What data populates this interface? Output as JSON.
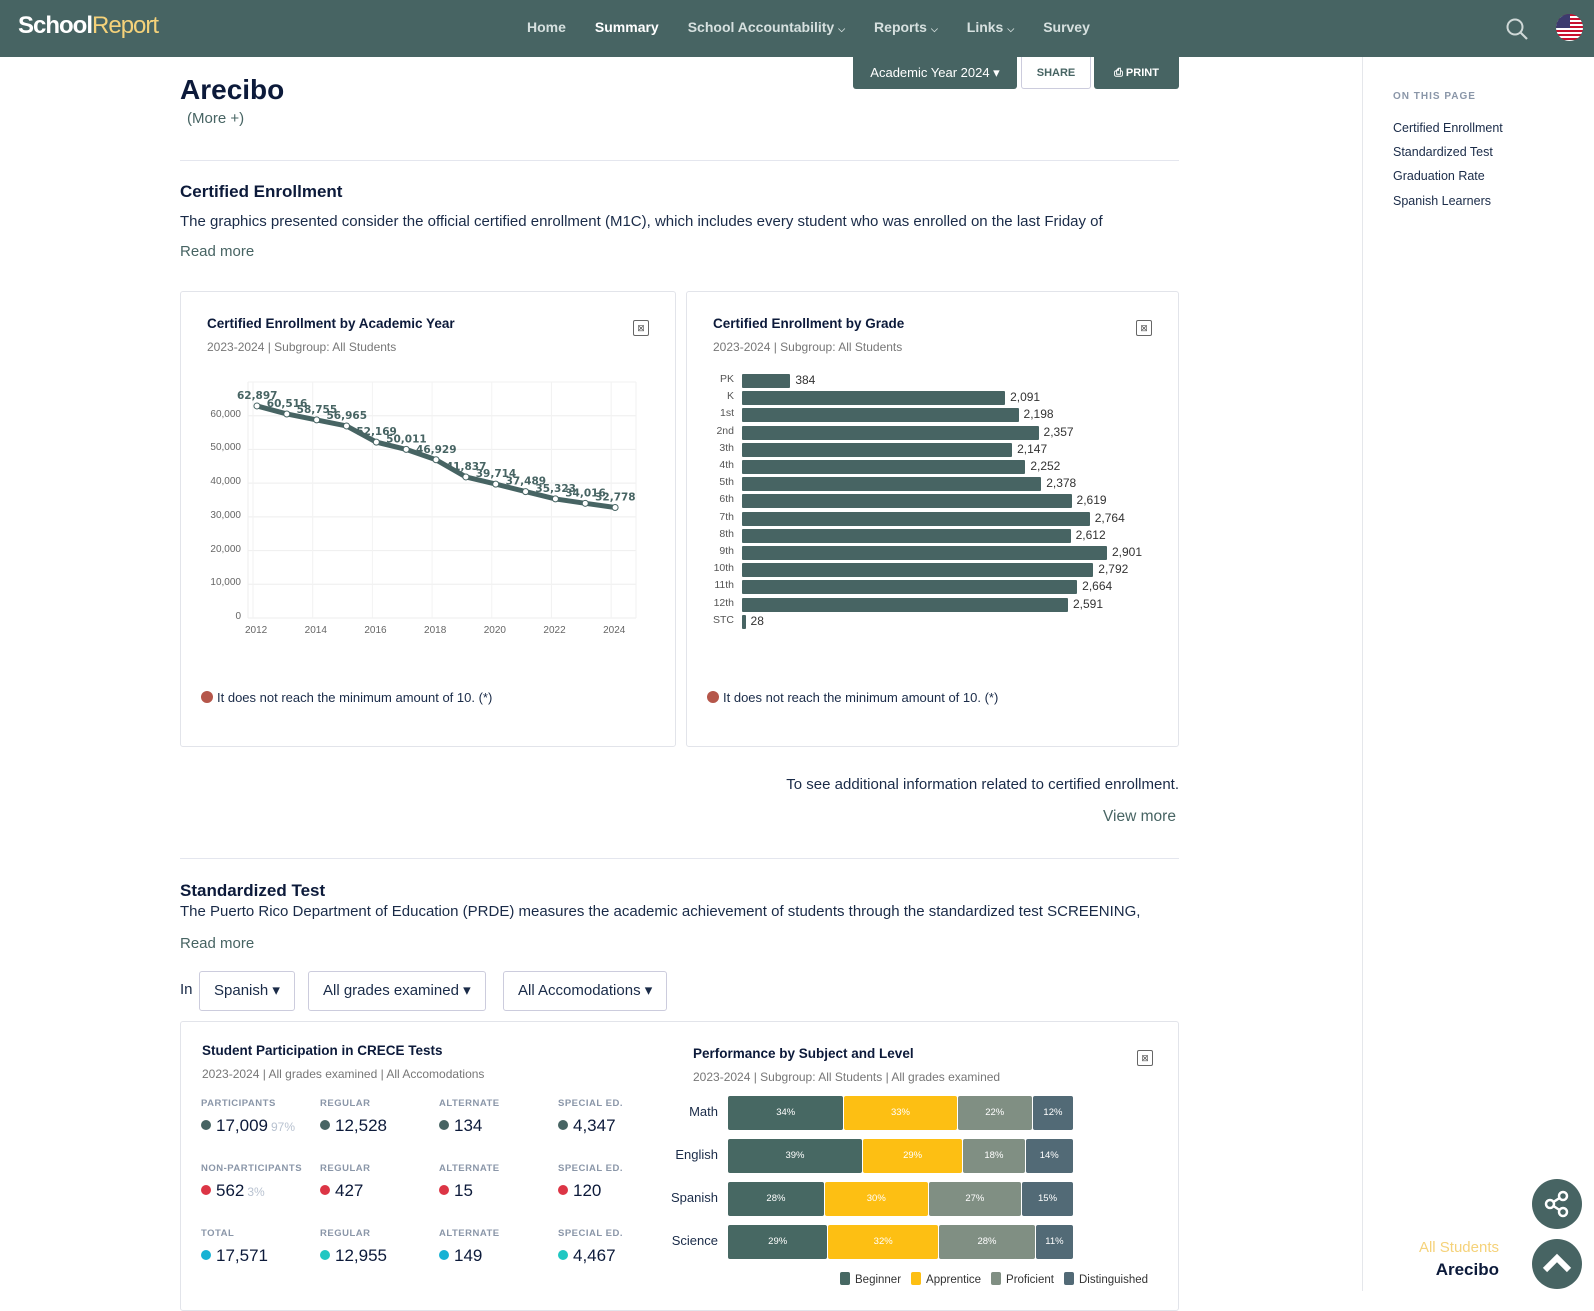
{
  "header": {
    "logo_a": "School",
    "logo_b": "Report",
    "nav": [
      {
        "label": "Home",
        "dropdown": false,
        "active": false
      },
      {
        "label": "Summary",
        "dropdown": false,
        "active": true
      },
      {
        "label": "School Accountability",
        "dropdown": true,
        "active": false
      },
      {
        "label": "Reports",
        "dropdown": true,
        "active": false
      },
      {
        "label": "Links",
        "dropdown": true,
        "active": false
      },
      {
        "label": "Survey",
        "dropdown": false,
        "active": false
      }
    ],
    "icons": {
      "search": "search-icon",
      "language": "us-flag-icon"
    }
  },
  "toolbar": {
    "year_label": "Academic Year 2024 ▾",
    "share_label": "SHARE",
    "print_label": "PRINT"
  },
  "page": {
    "title": "Arecibo",
    "more_label": "(More +)"
  },
  "on_this_page": {
    "title": "ON THIS PAGE",
    "links": [
      "Certified Enrollment",
      "Standardized Test",
      "Graduation Rate",
      "Spanish Learners"
    ]
  },
  "enrollment": {
    "heading": "Certified Enrollment",
    "text": "The graphics presented consider the official certified enrollment (M1C), which includes every student who was enrolled on the last Friday of",
    "read_more": "Read more",
    "note": "It does not reach the minimum amount of 10. (*)",
    "additional_text": "To see additional information related to certified enrollment.",
    "view_more": "View more"
  },
  "standardized": {
    "heading": "Standardized Test",
    "text": "The Puerto Rico Department of Education (PRDE) measures the academic achievement of students through the standardized test SCREENING,",
    "read_more": "Read more",
    "filter_prefix": "In",
    "filters": [
      "Spanish ▾",
      "All grades examined ▾",
      "All Accomodations ▾"
    ],
    "participation": {
      "title": "Student Participation in CRECE Tests",
      "subtitle": "2023-2024 | All grades examined | All Accomodations",
      "rows": [
        {
          "color": "#476463",
          "cells": [
            {
              "label": "PARTICIPANTS",
              "value": "17,009",
              "pct": "97%"
            },
            {
              "label": "REGULAR",
              "value": "12,528",
              "pct": ""
            },
            {
              "label": "ALTERNATE",
              "value": "134",
              "pct": ""
            },
            {
              "label": "SPECIAL ED.",
              "value": "4,347",
              "pct": ""
            }
          ]
        },
        {
          "color": "#dc3545",
          "cells": [
            {
              "label": "NON-PARTICIPANTS",
              "value": "562",
              "pct": "3%"
            },
            {
              "label": "REGULAR",
              "value": "427",
              "pct": ""
            },
            {
              "label": "ALTERNATE",
              "value": "15",
              "pct": ""
            },
            {
              "label": "SPECIAL ED.",
              "value": "120",
              "pct": ""
            }
          ]
        },
        {
          "color": "#17b2d4",
          "cells": [
            {
              "label": "TOTAL",
              "value": "17,571",
              "pct": ""
            },
            {
              "label": "REGULAR",
              "value": "12,955",
              "pct": ""
            },
            {
              "label": "ALTERNATE",
              "value": "149",
              "pct": ""
            },
            {
              "label": "SPECIAL ED.",
              "value": "4,467",
              "pct": ""
            }
          ]
        }
      ]
    }
  },
  "fab": {
    "subgroup": "All Students",
    "location": "Arecibo"
  },
  "colors": {
    "brand": "#476463",
    "accent": "#f5d27a",
    "beginner": "#476863",
    "apprentice": "#fdbf13",
    "proficient": "#808f83",
    "distinguished": "#526a76",
    "note_dot": "#b5564a"
  },
  "chart_data": [
    {
      "type": "line",
      "title": "Certified Enrollment by Academic Year",
      "subtitle": "2023-2024 | Subgroup: All Students",
      "x": [
        2012,
        2013,
        2014,
        2015,
        2016,
        2017,
        2018,
        2019,
        2020,
        2021,
        2022,
        2023,
        2024
      ],
      "values": [
        62897,
        60516,
        58755,
        56965,
        52169,
        50011,
        46929,
        41837,
        39714,
        37489,
        35323,
        34016,
        32778
      ],
      "labels": [
        "62,897",
        "60,516",
        "58,755",
        "56,965",
        "52,169",
        "50,011",
        "46,929",
        "41,837",
        "39,714",
        "37,489",
        "35,323",
        "34,016",
        "32,778"
      ],
      "xticks": [
        "2012",
        "2014",
        "2016",
        "2018",
        "2020",
        "2022",
        "2024"
      ],
      "yticks": [
        "0",
        "10,000",
        "20,000",
        "30,000",
        "40,000",
        "50,000",
        "60,000"
      ],
      "ylim": [
        0,
        70000
      ],
      "grid": true
    },
    {
      "type": "bar",
      "orientation": "horizontal",
      "title": "Certified Enrollment by Grade",
      "subtitle": "2023-2024 | Subgroup: All Students",
      "categories": [
        "PK",
        "K",
        "1st",
        "2nd",
        "3th",
        "4th",
        "5th",
        "6th",
        "7th",
        "8th",
        "9th",
        "10th",
        "11th",
        "12th",
        "STC"
      ],
      "values": [
        384,
        2091,
        2198,
        2357,
        2147,
        2252,
        2378,
        2619,
        2764,
        2612,
        2901,
        2792,
        2664,
        2591,
        28
      ],
      "labels": [
        "384",
        "2,091",
        "2,198",
        "2,357",
        "2,147",
        "2,252",
        "2,378",
        "2,619",
        "2,764",
        "2,612",
        "2,901",
        "2,792",
        "2,664",
        "2,591",
        "28"
      ]
    },
    {
      "type": "bar",
      "orientation": "horizontal",
      "stacked": true,
      "title": "Performance by Subject and Level",
      "subtitle": "2023-2024 | Subgroup: All Students | All grades examined",
      "categories": [
        "Math",
        "English",
        "Spanish",
        "Science"
      ],
      "series": [
        {
          "name": "Beginner",
          "values": [
            34,
            39,
            28,
            29
          ]
        },
        {
          "name": "Apprentice",
          "values": [
            33,
            29,
            30,
            32
          ]
        },
        {
          "name": "Proficient",
          "values": [
            22,
            18,
            27,
            28
          ]
        },
        {
          "name": "Distinguished",
          "values": [
            12,
            14,
            15,
            11
          ]
        }
      ],
      "legend": [
        "Beginner",
        "Apprentice",
        "Proficient",
        "Distinguished"
      ],
      "legend_position": "bottom"
    }
  ]
}
